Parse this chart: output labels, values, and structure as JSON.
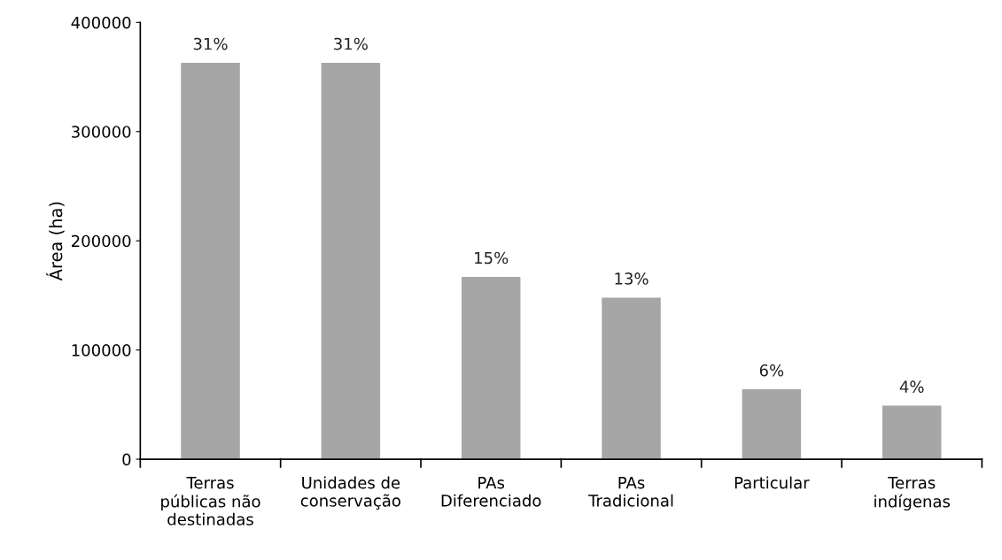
{
  "chart_data": {
    "type": "bar",
    "ylabel": "Área (ha)",
    "categories": [
      "Terras\npúblicas não\ndestinadas",
      "Unidades de\nconservação",
      "PAs\nDiferenciado",
      "PAs\nTradicional",
      "Particular",
      "Terras\nindígenas"
    ],
    "values": [
      363000,
      363000,
      167000,
      148000,
      64000,
      49000
    ],
    "annotations": [
      {
        "text": "31%",
        "x": "Terras\npúblicas não\ndestinadas",
        "y": 363000
      },
      {
        "text": "31%",
        "x": "Unidades de\nconservação",
        "y": 363000
      },
      {
        "text": "15%",
        "x": "PAs\nDiferenciado",
        "y": 167000
      },
      {
        "text": "13%",
        "x": "PAs\nTradicional",
        "y": 148000
      },
      {
        "text": "6%",
        "x": "Particular",
        "y": 64000
      },
      {
        "text": "4%",
        "x": "Terras\nindígenas",
        "y": 49000
      }
    ],
    "color": "#a6a6a6",
    "ylim": [
      0,
      400000
    ],
    "yticks": [
      0,
      100000,
      200000,
      300000,
      400000
    ],
    "grid": false
  }
}
